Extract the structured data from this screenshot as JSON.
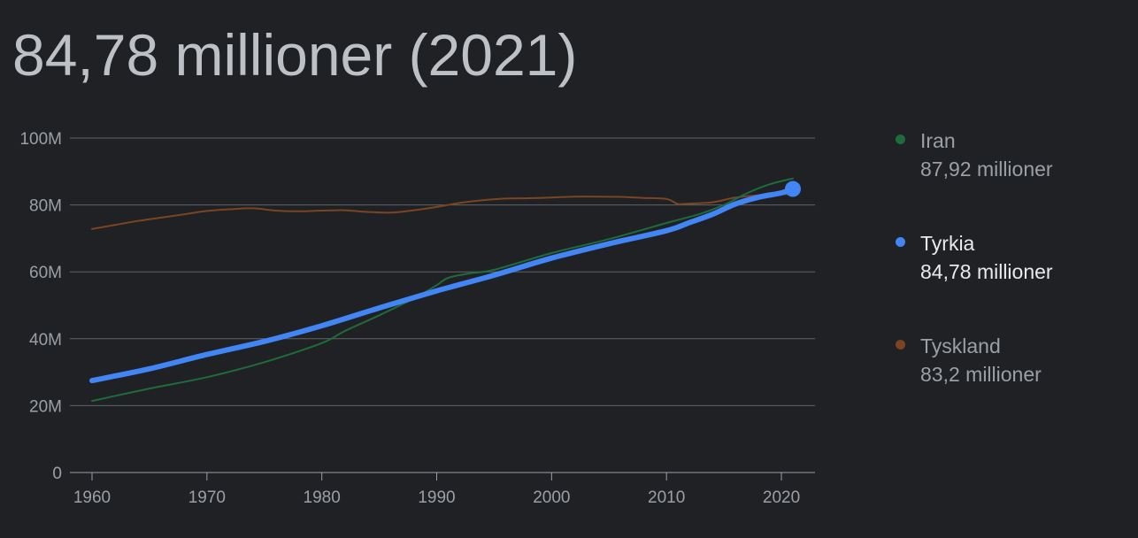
{
  "headline": "84,78 millioner (2021)",
  "legend": [
    {
      "name": "Iran",
      "value": "87,92 millioner",
      "color": "#1e6b3c",
      "active": false
    },
    {
      "name": "Tyrkia",
      "value": "84,78 millioner",
      "color": "#4285f4",
      "active": true
    },
    {
      "name": "Tyskland",
      "value": "83,2 millioner",
      "color": "#7b4423",
      "active": false
    }
  ],
  "chart_data": {
    "type": "line",
    "xlim": [
      1960,
      2021
    ],
    "ylim": [
      0,
      100
    ],
    "x_ticks": [
      1960,
      1970,
      1980,
      1990,
      2000,
      2010,
      2020
    ],
    "x_tick_labels": [
      "1960",
      "1970",
      "1980",
      "1990",
      "2000",
      "2010",
      "2020"
    ],
    "y_ticks": [
      0,
      20,
      40,
      60,
      80,
      100
    ],
    "y_tick_labels": [
      "0",
      "20M",
      "40M",
      "60M",
      "80M",
      "100M"
    ],
    "grid": true,
    "highlight": {
      "series": "Tyrkia",
      "x": 2021,
      "y": 84.78
    },
    "series": [
      {
        "name": "Tyskland",
        "color": "#7b4423",
        "points": [
          [
            1960,
            72.8
          ],
          [
            1964,
            75.2
          ],
          [
            1968,
            77.2
          ],
          [
            1970,
            78.2
          ],
          [
            1972,
            78.7
          ],
          [
            1974,
            79.0
          ],
          [
            1976,
            78.3
          ],
          [
            1978,
            78.1
          ],
          [
            1980,
            78.3
          ],
          [
            1982,
            78.4
          ],
          [
            1984,
            77.9
          ],
          [
            1986,
            77.7
          ],
          [
            1988,
            78.4
          ],
          [
            1990,
            79.4
          ],
          [
            1992,
            80.6
          ],
          [
            1994,
            81.4
          ],
          [
            1996,
            81.9
          ],
          [
            1998,
            82.0
          ],
          [
            2000,
            82.2
          ],
          [
            2002,
            82.5
          ],
          [
            2004,
            82.5
          ],
          [
            2006,
            82.4
          ],
          [
            2008,
            82.1
          ],
          [
            2010,
            81.8
          ],
          [
            2011,
            80.3
          ],
          [
            2012,
            80.4
          ],
          [
            2014,
            80.8
          ],
          [
            2016,
            82.2
          ],
          [
            2018,
            82.9
          ],
          [
            2020,
            83.2
          ],
          [
            2021,
            83.2
          ]
        ]
      },
      {
        "name": "Iran",
        "color": "#1e6b3c",
        "points": [
          [
            1960,
            21.4
          ],
          [
            1965,
            25.1
          ],
          [
            1970,
            28.5
          ],
          [
            1975,
            33.0
          ],
          [
            1980,
            38.7
          ],
          [
            1982,
            42.3
          ],
          [
            1985,
            47.0
          ],
          [
            1988,
            52.0
          ],
          [
            1990,
            56.0
          ],
          [
            1991,
            58.2
          ],
          [
            1993,
            59.6
          ],
          [
            1995,
            60.6
          ],
          [
            2000,
            65.6
          ],
          [
            2005,
            69.8
          ],
          [
            2010,
            74.6
          ],
          [
            2013,
            77.4
          ],
          [
            2015,
            80.0
          ],
          [
            2017,
            83.5
          ],
          [
            2019,
            86.2
          ],
          [
            2021,
            87.92
          ]
        ]
      },
      {
        "name": "Tyrkia",
        "color": "#4285f4",
        "points": [
          [
            1960,
            27.5
          ],
          [
            1965,
            31.0
          ],
          [
            1970,
            35.3
          ],
          [
            1975,
            39.2
          ],
          [
            1980,
            43.9
          ],
          [
            1985,
            49.2
          ],
          [
            1990,
            54.3
          ],
          [
            1995,
            59.0
          ],
          [
            2000,
            64.1
          ],
          [
            2005,
            68.4
          ],
          [
            2010,
            72.3
          ],
          [
            2012,
            74.7
          ],
          [
            2014,
            77.2
          ],
          [
            2016,
            80.3
          ],
          [
            2018,
            82.3
          ],
          [
            2020,
            83.6
          ],
          [
            2021,
            84.78
          ]
        ]
      }
    ]
  }
}
